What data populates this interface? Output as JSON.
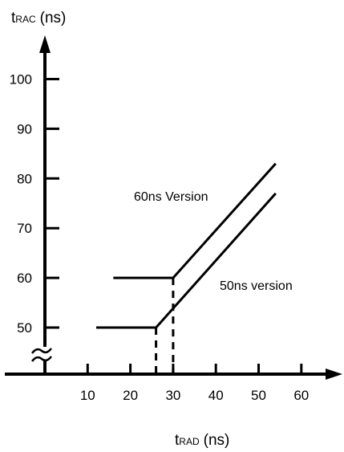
{
  "chart_data": {
    "type": "line",
    "ylabel": {
      "prefix": "t",
      "subscript": "RAC",
      "suffix": "(ns)"
    },
    "xlabel": {
      "prefix": "t",
      "subscript": "RAD",
      "suffix": "(ns)"
    },
    "x_ticks": [
      10,
      20,
      30,
      40,
      50,
      60
    ],
    "y_ticks": [
      50,
      60,
      70,
      80,
      90,
      100
    ],
    "x_tick_labels": [
      "10",
      "20",
      "30",
      "40",
      "50",
      "60"
    ],
    "y_tick_labels": [
      "50",
      "60",
      "70",
      "80",
      "90",
      "100"
    ],
    "xlim": [
      0,
      65
    ],
    "ylim": [
      45,
      108
    ],
    "y_axis_break": true,
    "grid": false,
    "series": [
      {
        "name": "60ns Version",
        "x": [
          16,
          30,
          54
        ],
        "y": [
          60,
          60,
          83
        ]
      },
      {
        "name": "50ns version",
        "x": [
          12,
          26,
          54
        ],
        "y": [
          50,
          50,
          77
        ]
      }
    ],
    "reference_lines": [
      {
        "x": 26,
        "y": 50
      },
      {
        "x": 30,
        "y": 60
      }
    ]
  },
  "colors": {
    "ink": "#000000",
    "background": "#ffffff"
  }
}
